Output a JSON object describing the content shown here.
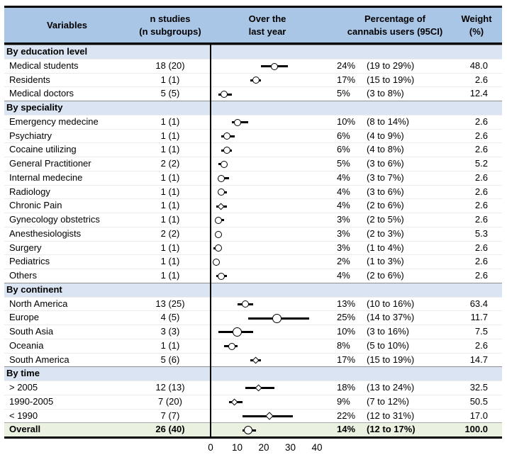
{
  "header": {
    "variables": "Variables",
    "n_line1": "n studies",
    "n_line2": "(n subgroups)",
    "plot_line1": "Over the",
    "plot_line2": "last year",
    "pct_line1": "Percentage of",
    "pct_line2": "cannabis users (95CI)",
    "weight_line1": "Weight",
    "weight_line2": "(%)"
  },
  "axis": {
    "ticks": [
      "0",
      "10",
      "20",
      "30",
      "40"
    ],
    "min": 0,
    "max": 40
  },
  "colors": {
    "header_bg": "#aac6e6",
    "section_bg": "#dae4f2",
    "overall_bg": "#eaf1e1",
    "marker_fill": "#ffffff",
    "line_color": "#000000"
  },
  "rows": [
    {
      "type": "section",
      "label": "By education level"
    },
    {
      "type": "data",
      "label": "Medical students",
      "n": "18 (20)",
      "pct": "24%",
      "ci": "(19 to 29%)",
      "weight": "48.0",
      "value": 24,
      "lo": 19,
      "hi": 29,
      "marker": "circle",
      "size": 10
    },
    {
      "type": "data",
      "label": "Residents",
      "n": "1 (1)",
      "pct": "17%",
      "ci": "(15 to 19%)",
      "weight": "2.6",
      "value": 17,
      "lo": 15,
      "hi": 19,
      "marker": "circle",
      "size": 10
    },
    {
      "type": "data",
      "label": "Medical doctors",
      "n": "5 (5)",
      "pct": "5%",
      "ci": "(3 to 8%)",
      "weight": "12.4",
      "value": 5,
      "lo": 3,
      "hi": 8,
      "marker": "circle",
      "size": 10
    },
    {
      "type": "section",
      "label": "By speciality"
    },
    {
      "type": "data",
      "label": "Emergency medecine",
      "n": "1 (1)",
      "pct": "10%",
      "ci": "(8 to 14%)",
      "weight": "2.6",
      "value": 10,
      "lo": 8,
      "hi": 14,
      "marker": "circle",
      "size": 10
    },
    {
      "type": "data",
      "label": "Psychiatry",
      "n": "1 (1)",
      "pct": "6%",
      "ci": "(4 to 9%)",
      "weight": "2.6",
      "value": 6,
      "lo": 4,
      "hi": 9,
      "marker": "circle",
      "size": 10
    },
    {
      "type": "data",
      "label": "Cocaine utilizing",
      "n": "1 (1)",
      "pct": "6%",
      "ci": "(4 to 8%)",
      "weight": "2.6",
      "value": 6,
      "lo": 4,
      "hi": 8,
      "marker": "circle",
      "size": 10
    },
    {
      "type": "data",
      "label": "General Practitioner",
      "n": "2 (2)",
      "pct": "5%",
      "ci": "(3 to 6%)",
      "weight": "5.2",
      "value": 5,
      "lo": 3,
      "hi": 6,
      "marker": "circle",
      "size": 10
    },
    {
      "type": "data",
      "label": "Internal medecine",
      "n": "1 (1)",
      "pct": "4%",
      "ci": "(3 to 7%)",
      "weight": "2.6",
      "value": 4,
      "lo": 3,
      "hi": 7,
      "marker": "circle",
      "size": 10
    },
    {
      "type": "data",
      "label": "Radiology",
      "n": "1 (1)",
      "pct": "4%",
      "ci": "(3 to 6%)",
      "weight": "2.6",
      "value": 4,
      "lo": 3,
      "hi": 6,
      "marker": "circle",
      "size": 10
    },
    {
      "type": "data",
      "label": "Chronic Pain",
      "n": "1 (1)",
      "pct": "4%",
      "ci": "(2 to 6%)",
      "weight": "2.6",
      "value": 4,
      "lo": 2,
      "hi": 6,
      "marker": "diamond",
      "size": 10
    },
    {
      "type": "data",
      "label": "Gynecology obstetrics",
      "n": "1 (1)",
      "pct": "3%",
      "ci": "(2 to 5%)",
      "weight": "2.6",
      "value": 3,
      "lo": 2,
      "hi": 5,
      "marker": "circle",
      "size": 10
    },
    {
      "type": "data",
      "label": "Anesthesiologists",
      "n": "2 (2)",
      "pct": "3%",
      "ci": "(2 to 3%)",
      "weight": "5.3",
      "value": 3,
      "lo": 2,
      "hi": 3,
      "marker": "circle",
      "size": 10
    },
    {
      "type": "data",
      "label": "Surgery",
      "n": "1 (1)",
      "pct": "3%",
      "ci": "(1 to 4%)",
      "weight": "2.6",
      "value": 3,
      "lo": 1,
      "hi": 4,
      "marker": "circle",
      "size": 10
    },
    {
      "type": "data",
      "label": "Pediatrics",
      "n": "1 (1)",
      "pct": "2%",
      "ci": "(1 to 3%)",
      "weight": "2.6",
      "value": 2,
      "lo": 1,
      "hi": 3,
      "marker": "circle",
      "size": 10
    },
    {
      "type": "data",
      "label": "Others",
      "n": "1 (1)",
      "pct": "4%",
      "ci": "(2 to 6%)",
      "weight": "2.6",
      "value": 4,
      "lo": 2,
      "hi": 6,
      "marker": "circle",
      "size": 10
    },
    {
      "type": "section",
      "label": "By continent"
    },
    {
      "type": "data",
      "label": "North America",
      "n": "13 (25)",
      "pct": "13%",
      "ci": "(10 to 16%)",
      "weight": "63.4",
      "value": 13,
      "lo": 10,
      "hi": 16,
      "marker": "circle",
      "size": 10
    },
    {
      "type": "data",
      "label": "Europe",
      "n": "4 (5)",
      "pct": "25%",
      "ci": "(14 to 37%)",
      "weight": "11.7",
      "value": 25,
      "lo": 14,
      "hi": 37,
      "marker": "circle",
      "size": 13
    },
    {
      "type": "data",
      "label": "South Asia",
      "n": "3 (3)",
      "pct": "10%",
      "ci": "(3 to 16%)",
      "weight": "7.5",
      "value": 10,
      "lo": 3,
      "hi": 16,
      "marker": "circle",
      "size": 13
    },
    {
      "type": "data",
      "label": "Oceania",
      "n": "1 (1)",
      "pct": "8%",
      "ci": "(5 to 10%)",
      "weight": "2.6",
      "value": 8,
      "lo": 5,
      "hi": 10,
      "marker": "circle",
      "size": 10
    },
    {
      "type": "data",
      "label": "South America",
      "n": "5 (6)",
      "pct": "17%",
      "ci": "(15 to 19%)",
      "weight": "14.7",
      "value": 17,
      "lo": 15,
      "hi": 19,
      "marker": "diamond",
      "size": 10
    },
    {
      "type": "section",
      "label": "By time"
    },
    {
      "type": "data",
      "label": "> 2005",
      "n": "12 (13)",
      "pct": "18%",
      "ci": "(13 to 24%)",
      "weight": "32.5",
      "value": 18,
      "lo": 13,
      "hi": 24,
      "marker": "diamond",
      "size": 10
    },
    {
      "type": "data",
      "label": "1990-2005",
      "n": "7 (20)",
      "pct": "9%",
      "ci": "(7 to 12%)",
      "weight": "50.5",
      "value": 9,
      "lo": 7,
      "hi": 12,
      "marker": "diamond",
      "size": 10
    },
    {
      "type": "data",
      "label": "< 1990",
      "n": "7 (7)",
      "pct": "22%",
      "ci": "(12 to 31%)",
      "weight": "17.0",
      "value": 22,
      "lo": 12,
      "hi": 31,
      "marker": "diamond",
      "size": 11
    },
    {
      "type": "overall",
      "label": "Overall",
      "n": "26 (40)",
      "pct": "14%",
      "ci": "(12 to 17%)",
      "weight": "100.0",
      "value": 14,
      "lo": 12,
      "hi": 17,
      "marker": "circle",
      "size": 12
    }
  ],
  "chart_data": {
    "type": "scatter",
    "subtype": "forest-plot",
    "title": "",
    "xlabel": "Over the last year",
    "x_axis_ticks": [
      0,
      10,
      20,
      30,
      40
    ],
    "xlim": [
      0,
      40
    ],
    "columns": [
      "Variables",
      "n studies (n subgroups)",
      "Over the last year",
      "Percentage of cannabis users (95CI)",
      "Weight (%)"
    ],
    "groups": [
      {
        "name": "By education level",
        "points": [
          {
            "label": "Medical students",
            "n_studies": 18,
            "n_subgroups": 20,
            "estimate_pct": 24,
            "ci_low": 19,
            "ci_high": 29,
            "weight_pct": 48.0
          },
          {
            "label": "Residents",
            "n_studies": 1,
            "n_subgroups": 1,
            "estimate_pct": 17,
            "ci_low": 15,
            "ci_high": 19,
            "weight_pct": 2.6
          },
          {
            "label": "Medical doctors",
            "n_studies": 5,
            "n_subgroups": 5,
            "estimate_pct": 5,
            "ci_low": 3,
            "ci_high": 8,
            "weight_pct": 12.4
          }
        ]
      },
      {
        "name": "By speciality",
        "points": [
          {
            "label": "Emergency medecine",
            "n_studies": 1,
            "n_subgroups": 1,
            "estimate_pct": 10,
            "ci_low": 8,
            "ci_high": 14,
            "weight_pct": 2.6
          },
          {
            "label": "Psychiatry",
            "n_studies": 1,
            "n_subgroups": 1,
            "estimate_pct": 6,
            "ci_low": 4,
            "ci_high": 9,
            "weight_pct": 2.6
          },
          {
            "label": "Cocaine utilizing",
            "n_studies": 1,
            "n_subgroups": 1,
            "estimate_pct": 6,
            "ci_low": 4,
            "ci_high": 8,
            "weight_pct": 2.6
          },
          {
            "label": "General Practitioner",
            "n_studies": 2,
            "n_subgroups": 2,
            "estimate_pct": 5,
            "ci_low": 3,
            "ci_high": 6,
            "weight_pct": 5.2
          },
          {
            "label": "Internal medecine",
            "n_studies": 1,
            "n_subgroups": 1,
            "estimate_pct": 4,
            "ci_low": 3,
            "ci_high": 7,
            "weight_pct": 2.6
          },
          {
            "label": "Radiology",
            "n_studies": 1,
            "n_subgroups": 1,
            "estimate_pct": 4,
            "ci_low": 3,
            "ci_high": 6,
            "weight_pct": 2.6
          },
          {
            "label": "Chronic Pain",
            "n_studies": 1,
            "n_subgroups": 1,
            "estimate_pct": 4,
            "ci_low": 2,
            "ci_high": 6,
            "weight_pct": 2.6
          },
          {
            "label": "Gynecology obstetrics",
            "n_studies": 1,
            "n_subgroups": 1,
            "estimate_pct": 3,
            "ci_low": 2,
            "ci_high": 5,
            "weight_pct": 2.6
          },
          {
            "label": "Anesthesiologists",
            "n_studies": 2,
            "n_subgroups": 2,
            "estimate_pct": 3,
            "ci_low": 2,
            "ci_high": 3,
            "weight_pct": 5.3
          },
          {
            "label": "Surgery",
            "n_studies": 1,
            "n_subgroups": 1,
            "estimate_pct": 3,
            "ci_low": 1,
            "ci_high": 4,
            "weight_pct": 2.6
          },
          {
            "label": "Pediatrics",
            "n_studies": 1,
            "n_subgroups": 1,
            "estimate_pct": 2,
            "ci_low": 1,
            "ci_high": 3,
            "weight_pct": 2.6
          },
          {
            "label": "Others",
            "n_studies": 1,
            "n_subgroups": 1,
            "estimate_pct": 4,
            "ci_low": 2,
            "ci_high": 6,
            "weight_pct": 2.6
          }
        ]
      },
      {
        "name": "By continent",
        "points": [
          {
            "label": "North America",
            "n_studies": 13,
            "n_subgroups": 25,
            "estimate_pct": 13,
            "ci_low": 10,
            "ci_high": 16,
            "weight_pct": 63.4
          },
          {
            "label": "Europe",
            "n_studies": 4,
            "n_subgroups": 5,
            "estimate_pct": 25,
            "ci_low": 14,
            "ci_high": 37,
            "weight_pct": 11.7
          },
          {
            "label": "South Asia",
            "n_studies": 3,
            "n_subgroups": 3,
            "estimate_pct": 10,
            "ci_low": 3,
            "ci_high": 16,
            "weight_pct": 7.5
          },
          {
            "label": "Oceania",
            "n_studies": 1,
            "n_subgroups": 1,
            "estimate_pct": 8,
            "ci_low": 5,
            "ci_high": 10,
            "weight_pct": 2.6
          },
          {
            "label": "South America",
            "n_studies": 5,
            "n_subgroups": 6,
            "estimate_pct": 17,
            "ci_low": 15,
            "ci_high": 19,
            "weight_pct": 14.7
          }
        ]
      },
      {
        "name": "By time",
        "points": [
          {
            "label": "> 2005",
            "n_studies": 12,
            "n_subgroups": 13,
            "estimate_pct": 18,
            "ci_low": 13,
            "ci_high": 24,
            "weight_pct": 32.5
          },
          {
            "label": "1990-2005",
            "n_studies": 7,
            "n_subgroups": 20,
            "estimate_pct": 9,
            "ci_low": 7,
            "ci_high": 12,
            "weight_pct": 50.5
          },
          {
            "label": "< 1990",
            "n_studies": 7,
            "n_subgroups": 7,
            "estimate_pct": 22,
            "ci_low": 12,
            "ci_high": 31,
            "weight_pct": 17.0
          }
        ]
      }
    ],
    "overall": {
      "label": "Overall",
      "n_studies": 26,
      "n_subgroups": 40,
      "estimate_pct": 14,
      "ci_low": 12,
      "ci_high": 17,
      "weight_pct": 100.0
    }
  }
}
